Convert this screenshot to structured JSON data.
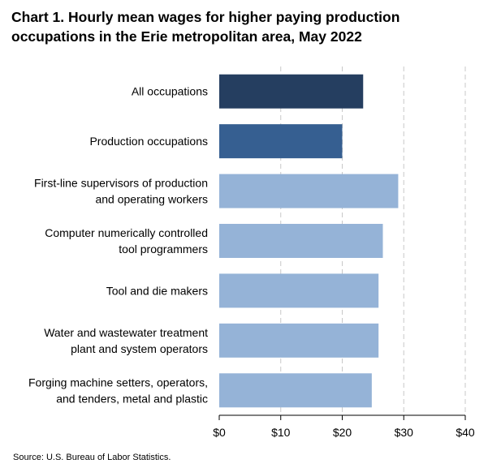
{
  "chart_data": {
    "type": "bar",
    "orientation": "horizontal",
    "title": "Chart 1. Hourly mean wages for higher paying production occupations in the Erie metropolitan area, May 2022",
    "categories": [
      [
        "All occupations"
      ],
      [
        "Production occupations"
      ],
      [
        "First-line supervisors of production",
        "and operating workers"
      ],
      [
        "Computer numerically controlled",
        "tool programmers"
      ],
      [
        "Tool and die makers"
      ],
      [
        "Water and wastewater treatment",
        "plant and system operators"
      ],
      [
        "Forging machine setters, operators,",
        "and tenders, metal and plastic"
      ]
    ],
    "values": [
      23.4,
      20.0,
      29.1,
      26.6,
      25.9,
      25.9,
      24.8
    ],
    "colors": [
      "#253e60",
      "#365f91",
      "#95b3d7",
      "#95b3d7",
      "#95b3d7",
      "#95b3d7",
      "#95b3d7"
    ],
    "xlim": [
      0,
      40
    ],
    "xticks": [
      0,
      10,
      20,
      30,
      40
    ],
    "xtick_labels": [
      "$0",
      "$10",
      "$20",
      "$30",
      "$40"
    ],
    "grid": "vertical-dashed",
    "xlabel": "",
    "ylabel": ""
  },
  "source": "Source: U.S. Bureau of Labor Statistics."
}
